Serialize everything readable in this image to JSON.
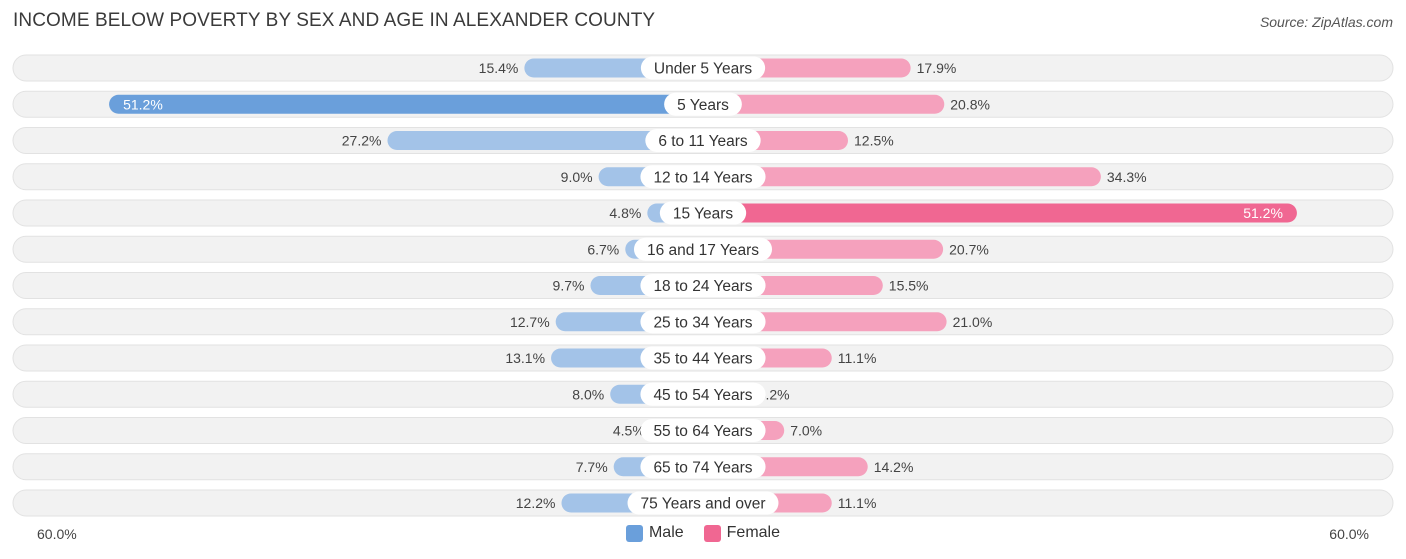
{
  "title": "INCOME BELOW POVERTY BY SEX AND AGE IN ALEXANDER COUNTY",
  "source": "Source: ZipAtlas.com",
  "axis": {
    "left_label": "60.0%",
    "right_label": "60.0%"
  },
  "legend": {
    "male_label": "Male",
    "female_label": "Female"
  },
  "colors": {
    "male": "#a3c3e8",
    "male_strong": "#6a9fdb",
    "female": "#f5a1bd",
    "female_strong": "#f06792",
    "row_bg": "#f2f2f2"
  },
  "chart_data": {
    "type": "bar",
    "orientation": "horizontal-diverging",
    "title": "INCOME BELOW POVERTY BY SEX AND AGE IN ALEXANDER COUNTY",
    "xlim": [
      -60,
      60
    ],
    "categories": [
      "Under 5 Years",
      "5 Years",
      "6 to 11 Years",
      "12 to 14 Years",
      "15 Years",
      "16 and 17 Years",
      "18 to 24 Years",
      "25 to 34 Years",
      "35 to 44 Years",
      "45 to 54 Years",
      "55 to 64 Years",
      "65 to 74 Years",
      "75 Years and over"
    ],
    "series": [
      {
        "name": "Male",
        "values": [
          15.4,
          51.2,
          27.2,
          9.0,
          4.8,
          6.7,
          9.7,
          12.7,
          13.1,
          8.0,
          4.5,
          7.7,
          12.2
        ]
      },
      {
        "name": "Female",
        "values": [
          17.9,
          20.8,
          12.5,
          34.3,
          51.2,
          20.7,
          15.5,
          21.0,
          11.1,
          4.2,
          7.0,
          14.2,
          11.1
        ]
      }
    ],
    "labels": {
      "male": [
        "15.4%",
        "51.2%",
        "27.2%",
        "9.0%",
        "4.8%",
        "6.7%",
        "9.7%",
        "12.7%",
        "13.1%",
        "8.0%",
        "4.5%",
        "7.7%",
        "12.2%"
      ],
      "female": [
        "17.9%",
        "20.8%",
        "12.5%",
        "34.3%",
        "51.2%",
        "20.7%",
        "15.5%",
        "21.0%",
        "11.1%",
        "4.2%",
        "7.0%",
        "14.2%",
        "11.1%"
      ]
    },
    "legend_position": "bottom-center"
  }
}
